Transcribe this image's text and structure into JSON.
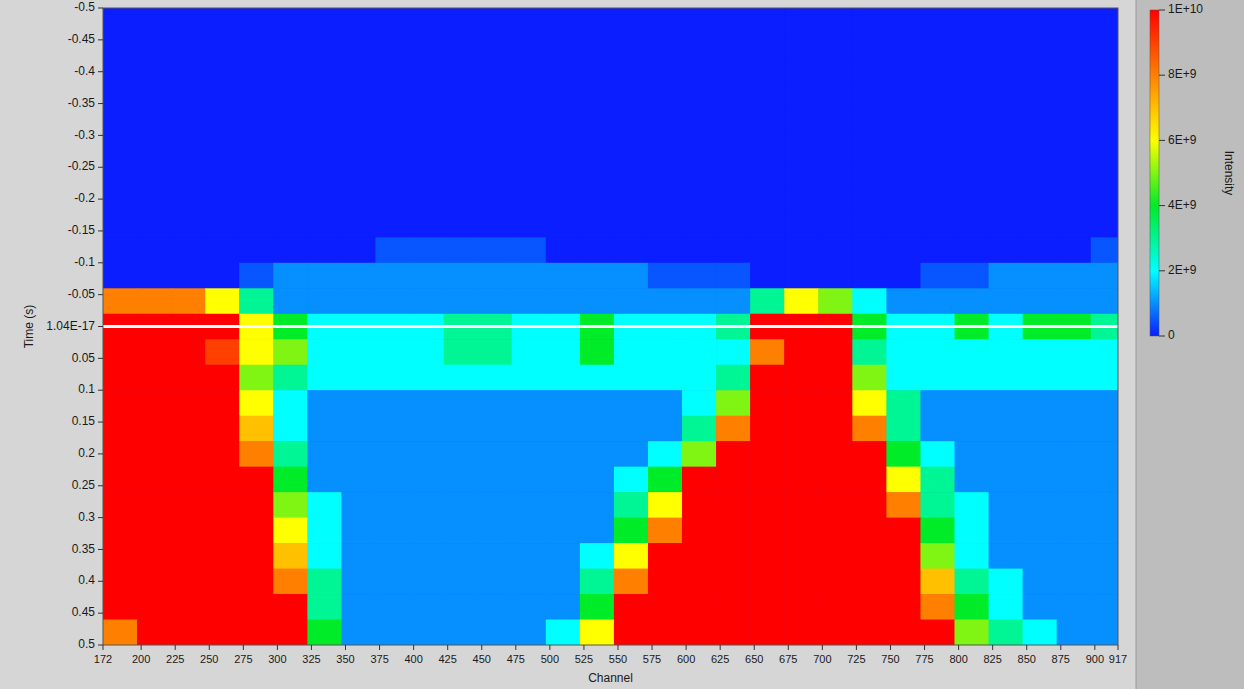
{
  "chart_data": {
    "type": "heatmap",
    "xlabel": "Channel",
    "ylabel": "Time (s)",
    "colorbar_label": "Intensity",
    "xlim": [
      172,
      917
    ],
    "ylim": [
      -0.5,
      0.5
    ],
    "xticks": [
      172,
      200,
      225,
      250,
      275,
      300,
      325,
      350,
      375,
      400,
      425,
      450,
      475,
      500,
      525,
      550,
      575,
      600,
      625,
      650,
      675,
      700,
      725,
      750,
      775,
      800,
      825,
      850,
      875,
      900,
      917
    ],
    "yticks": [
      -0.5,
      -0.45,
      -0.4,
      -0.35,
      -0.3,
      -0.25,
      -0.2,
      -0.15,
      -0.1,
      -0.05,
      {
        "value": 1.04e-17,
        "label": "1.04E-17"
      },
      0.05,
      0.1,
      0.15,
      0.2,
      0.25,
      0.3,
      0.35,
      0.4,
      0.45,
      0.5
    ],
    "grid": false,
    "cursor": 1.04e-17,
    "clim": [
      0,
      10000000000.0
    ],
    "cticks": [
      0,
      {
        "value": 2000000000.0,
        "label": "2E+9"
      },
      {
        "value": 4000000000.0,
        "label": "4E+9"
      },
      {
        "value": 6000000000.0,
        "label": "6E+9"
      },
      {
        "value": 8000000000.0,
        "label": "8E+9"
      },
      {
        "value": 10000000000.0,
        "label": "1E+10"
      }
    ],
    "x_bins": [
      172,
      197,
      222,
      247,
      272,
      297,
      322,
      347,
      372,
      397,
      422,
      447,
      472,
      497,
      522,
      547,
      572,
      597,
      622,
      647,
      672,
      697,
      722,
      747,
      772,
      797,
      822,
      847,
      872,
      897,
      922
    ],
    "y_bins": [
      -0.5,
      -0.46,
      -0.42,
      -0.38,
      -0.34,
      -0.3,
      -0.26,
      -0.22,
      -0.18,
      -0.14,
      -0.1,
      -0.06,
      -0.02,
      0.02,
      0.06,
      0.1,
      0.14,
      0.18,
      0.22,
      0.26,
      0.3,
      0.34,
      0.38,
      0.42,
      0.46,
      0.5
    ],
    "z": [
      [
        0,
        0,
        0,
        0,
        0,
        0,
        0,
        0,
        0,
        0,
        0,
        0,
        0,
        0,
        0,
        0,
        0,
        0,
        0,
        0,
        0,
        0,
        0,
        0,
        0,
        0,
        0,
        0,
        0,
        0
      ],
      [
        0,
        0,
        0,
        0,
        0,
        0,
        0,
        0,
        0,
        0,
        0,
        0,
        0,
        0,
        0,
        0,
        0,
        0,
        0,
        0,
        0,
        0,
        0,
        0,
        0,
        0,
        0,
        0,
        0,
        0
      ],
      [
        0,
        0,
        0,
        0,
        0,
        0,
        0,
        0,
        0,
        0,
        0,
        0,
        0,
        0,
        0,
        0,
        0,
        0,
        0,
        0,
        0,
        0,
        0,
        0,
        0,
        0,
        0,
        0,
        0,
        0
      ],
      [
        0,
        0,
        0,
        0,
        0,
        0,
        0,
        0,
        0,
        0,
        0,
        0,
        0,
        0,
        0,
        0,
        0,
        0,
        0,
        0,
        0,
        0,
        0,
        0,
        0,
        0,
        0,
        0,
        0,
        0
      ],
      [
        0,
        0,
        0,
        0,
        0,
        0,
        0,
        0,
        0,
        0,
        0,
        0,
        0,
        0,
        0,
        0,
        0,
        0,
        0,
        0,
        0,
        0,
        0,
        0,
        0,
        0,
        0,
        0,
        0,
        0
      ],
      [
        0,
        0,
        0,
        0,
        0,
        0,
        0,
        0,
        0,
        0,
        0,
        0,
        0,
        0,
        0,
        0,
        0,
        0,
        0,
        0,
        0,
        0,
        0,
        0,
        0,
        0,
        0,
        0,
        0,
        0
      ],
      [
        0,
        0,
        0,
        0,
        0,
        0,
        0,
        0,
        0,
        0,
        0,
        0,
        0,
        0,
        0,
        0,
        0,
        0,
        0,
        0,
        0,
        0,
        0,
        0,
        0,
        0,
        0,
        0,
        0,
        0
      ],
      [
        0,
        0,
        0,
        0,
        0,
        0,
        0,
        0,
        0,
        0,
        0,
        0,
        0,
        0,
        0,
        0,
        0,
        0,
        0,
        0,
        0,
        0,
        0,
        0,
        0,
        0,
        0,
        0,
        0,
        0
      ],
      [
        0,
        0,
        0,
        0,
        0,
        0,
        0,
        0,
        0,
        0,
        0,
        0,
        0,
        0,
        0,
        0,
        0,
        0,
        0,
        0,
        0,
        0,
        0,
        0,
        0,
        0,
        0,
        0,
        0,
        0
      ],
      [
        0,
        0,
        0,
        0,
        0,
        0,
        0,
        0,
        500000000.0,
        500000000.0,
        500000000.0,
        500000000.0,
        500000000.0,
        0,
        0,
        0,
        0,
        0,
        0,
        0,
        0,
        0,
        0,
        0,
        0,
        0,
        0,
        0,
        0,
        500000000.0
      ],
      [
        0,
        0,
        0,
        0,
        500000000.0,
        1000000000.0,
        1000000000.0,
        1000000000.0,
        1000000000.0,
        1000000000.0,
        1000000000.0,
        1000000000.0,
        1000000000.0,
        1000000000.0,
        1000000000.0,
        1000000000.0,
        500000000.0,
        500000000.0,
        500000000.0,
        0,
        0,
        0,
        0,
        0,
        500000000.0,
        500000000.0,
        1000000000.0,
        1000000000.0,
        1000000000.0,
        1000000000.0
      ],
      [
        8000000000.0,
        8000000000.0,
        8000000000.0,
        6000000000.0,
        3000000000.0,
        1000000000.0,
        1000000000.0,
        1000000000.0,
        1000000000.0,
        1000000000.0,
        1000000000.0,
        1000000000.0,
        1000000000.0,
        1000000000.0,
        1000000000.0,
        1000000000.0,
        1000000000.0,
        1000000000.0,
        1000000000.0,
        3000000000.0,
        6000000000.0,
        5000000000.0,
        2000000000.0,
        1000000000.0,
        1000000000.0,
        1000000000.0,
        1000000000.0,
        1000000000.0,
        1000000000.0,
        1000000000.0
      ],
      [
        10000000000.0,
        10000000000.0,
        10000000000.0,
        10000000000.0,
        6000000000.0,
        4000000000.0,
        2000000000.0,
        2000000000.0,
        2000000000.0,
        2000000000.0,
        3000000000.0,
        3000000000.0,
        2000000000.0,
        2000000000.0,
        4000000000.0,
        2000000000.0,
        2000000000.0,
        2000000000.0,
        3000000000.0,
        10000000000.0,
        10000000000.0,
        10000000000.0,
        4000000000.0,
        2000000000.0,
        2000000000.0,
        4000000000.0,
        2000000000.0,
        4000000000.0,
        4000000000.0,
        3000000000.0
      ],
      [
        10000000000.0,
        10000000000.0,
        10000000000.0,
        9000000000.0,
        6000000000.0,
        5000000000.0,
        2000000000.0,
        2000000000.0,
        2000000000.0,
        2000000000.0,
        3000000000.0,
        3000000000.0,
        2000000000.0,
        2000000000.0,
        4000000000.0,
        2000000000.0,
        2000000000.0,
        2000000000.0,
        2000000000.0,
        8000000000.0,
        10000000000.0,
        10000000000.0,
        3000000000.0,
        2000000000.0,
        2000000000.0,
        2000000000.0,
        2000000000.0,
        2000000000.0,
        2000000000.0,
        2000000000.0
      ],
      [
        10000000000.0,
        10000000000.0,
        10000000000.0,
        10000000000.0,
        5000000000.0,
        3000000000.0,
        2000000000.0,
        2000000000.0,
        2000000000.0,
        2000000000.0,
        2000000000.0,
        2000000000.0,
        2000000000.0,
        2000000000.0,
        2000000000.0,
        2000000000.0,
        2000000000.0,
        2000000000.0,
        3000000000.0,
        10000000000.0,
        10000000000.0,
        10000000000.0,
        5000000000.0,
        2000000000.0,
        2000000000.0,
        2000000000.0,
        2000000000.0,
        2000000000.0,
        2000000000.0,
        2000000000.0
      ],
      [
        10000000000.0,
        10000000000.0,
        10000000000.0,
        10000000000.0,
        6000000000.0,
        2000000000.0,
        1000000000.0,
        1000000000.0,
        1000000000.0,
        1000000000.0,
        1000000000.0,
        1000000000.0,
        1000000000.0,
        1000000000.0,
        1000000000.0,
        1000000000.0,
        1000000000.0,
        2000000000.0,
        5000000000.0,
        10000000000.0,
        10000000000.0,
        10000000000.0,
        6000000000.0,
        3000000000.0,
        1000000000.0,
        1000000000.0,
        1000000000.0,
        1000000000.0,
        1000000000.0,
        1000000000.0
      ],
      [
        10000000000.0,
        10000000000.0,
        10000000000.0,
        10000000000.0,
        7000000000.0,
        2000000000.0,
        1000000000.0,
        1000000000.0,
        1000000000.0,
        1000000000.0,
        1000000000.0,
        1000000000.0,
        1000000000.0,
        1000000000.0,
        1000000000.0,
        1000000000.0,
        1000000000.0,
        3000000000.0,
        8000000000.0,
        10000000000.0,
        10000000000.0,
        10000000000.0,
        8000000000.0,
        3000000000.0,
        1000000000.0,
        1000000000.0,
        1000000000.0,
        1000000000.0,
        1000000000.0,
        1000000000.0
      ],
      [
        10000000000.0,
        10000000000.0,
        10000000000.0,
        10000000000.0,
        8000000000.0,
        3000000000.0,
        1000000000.0,
        1000000000.0,
        1000000000.0,
        1000000000.0,
        1000000000.0,
        1000000000.0,
        1000000000.0,
        1000000000.0,
        1000000000.0,
        1000000000.0,
        2000000000.0,
        5000000000.0,
        10000000000.0,
        10000000000.0,
        10000000000.0,
        10000000000.0,
        10000000000.0,
        4000000000.0,
        2000000000.0,
        1000000000.0,
        1000000000.0,
        1000000000.0,
        1000000000.0,
        1000000000.0
      ],
      [
        10000000000.0,
        10000000000.0,
        10000000000.0,
        10000000000.0,
        10000000000.0,
        4000000000.0,
        1000000000.0,
        1000000000.0,
        1000000000.0,
        1000000000.0,
        1000000000.0,
        1000000000.0,
        1000000000.0,
        1000000000.0,
        1000000000.0,
        2000000000.0,
        4000000000.0,
        10000000000.0,
        10000000000.0,
        10000000000.0,
        10000000000.0,
        10000000000.0,
        10000000000.0,
        6000000000.0,
        3000000000.0,
        1000000000.0,
        1000000000.0,
        1000000000.0,
        1000000000.0,
        1000000000.0
      ],
      [
        10000000000.0,
        10000000000.0,
        10000000000.0,
        10000000000.0,
        10000000000.0,
        5000000000.0,
        2000000000.0,
        1000000000.0,
        1000000000.0,
        1000000000.0,
        1000000000.0,
        1000000000.0,
        1000000000.0,
        1000000000.0,
        1000000000.0,
        3000000000.0,
        6000000000.0,
        10000000000.0,
        10000000000.0,
        10000000000.0,
        10000000000.0,
        10000000000.0,
        10000000000.0,
        8000000000.0,
        3000000000.0,
        2000000000.0,
        1000000000.0,
        1000000000.0,
        1000000000.0,
        1000000000.0
      ],
      [
        10000000000.0,
        10000000000.0,
        10000000000.0,
        10000000000.0,
        10000000000.0,
        6000000000.0,
        2000000000.0,
        1000000000.0,
        1000000000.0,
        1000000000.0,
        1000000000.0,
        1000000000.0,
        1000000000.0,
        1000000000.0,
        1000000000.0,
        4000000000.0,
        8000000000.0,
        10000000000.0,
        10000000000.0,
        10000000000.0,
        10000000000.0,
        10000000000.0,
        10000000000.0,
        10000000000.0,
        4000000000.0,
        2000000000.0,
        1000000000.0,
        1000000000.0,
        1000000000.0,
        1000000000.0
      ],
      [
        10000000000.0,
        10000000000.0,
        10000000000.0,
        10000000000.0,
        10000000000.0,
        7000000000.0,
        2000000000.0,
        1000000000.0,
        1000000000.0,
        1000000000.0,
        1000000000.0,
        1000000000.0,
        1000000000.0,
        1000000000.0,
        2000000000.0,
        6000000000.0,
        10000000000.0,
        10000000000.0,
        10000000000.0,
        10000000000.0,
        10000000000.0,
        10000000000.0,
        10000000000.0,
        10000000000.0,
        5000000000.0,
        2000000000.0,
        1000000000.0,
        1000000000.0,
        1000000000.0,
        1000000000.0
      ],
      [
        10000000000.0,
        10000000000.0,
        10000000000.0,
        10000000000.0,
        10000000000.0,
        8000000000.0,
        3000000000.0,
        1000000000.0,
        1000000000.0,
        1000000000.0,
        1000000000.0,
        1000000000.0,
        1000000000.0,
        1000000000.0,
        3000000000.0,
        8000000000.0,
        10000000000.0,
        10000000000.0,
        10000000000.0,
        10000000000.0,
        10000000000.0,
        10000000000.0,
        10000000000.0,
        10000000000.0,
        7000000000.0,
        3000000000.0,
        2000000000.0,
        1000000000.0,
        1000000000.0,
        1000000000.0
      ],
      [
        10000000000.0,
        10000000000.0,
        10000000000.0,
        10000000000.0,
        10000000000.0,
        10000000000.0,
        3000000000.0,
        1000000000.0,
        1000000000.0,
        1000000000.0,
        1000000000.0,
        1000000000.0,
        1000000000.0,
        1000000000.0,
        4000000000.0,
        10000000000.0,
        10000000000.0,
        10000000000.0,
        10000000000.0,
        10000000000.0,
        10000000000.0,
        10000000000.0,
        10000000000.0,
        10000000000.0,
        8000000000.0,
        4000000000.0,
        2000000000.0,
        1000000000.0,
        1000000000.0,
        1000000000.0
      ],
      [
        8000000000.0,
        10000000000.0,
        10000000000.0,
        10000000000.0,
        10000000000.0,
        10000000000.0,
        4000000000.0,
        1000000000.0,
        1000000000.0,
        1000000000.0,
        1000000000.0,
        1000000000.0,
        1000000000.0,
        2000000000.0,
        6000000000.0,
        10000000000.0,
        10000000000.0,
        10000000000.0,
        10000000000.0,
        10000000000.0,
        10000000000.0,
        10000000000.0,
        10000000000.0,
        10000000000.0,
        10000000000.0,
        5000000000.0,
        3000000000.0,
        2000000000.0,
        1000000000.0,
        1000000000.0
      ]
    ]
  }
}
